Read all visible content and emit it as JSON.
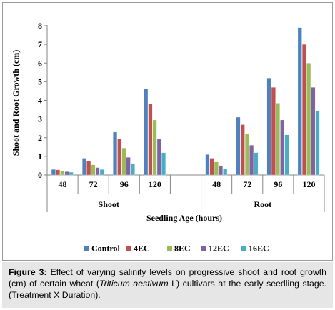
{
  "chart_data": {
    "type": "bar",
    "ylabel": "Shoot and Root Growth (cm)",
    "xlabel": "Seedling Age (hours)",
    "ylim": [
      0,
      8
    ],
    "yticks": [
      0,
      1,
      2,
      3,
      4,
      5,
      6,
      7,
      8
    ],
    "grid": false,
    "legend_position": "bottom",
    "groups": [
      {
        "label": "Shoot",
        "categories": [
          "48",
          "72",
          "96",
          "120"
        ]
      },
      {
        "label": "Root",
        "categories": [
          "48",
          "72",
          "96",
          "120"
        ]
      }
    ],
    "categories": [
      "48",
      "72",
      "96",
      "120",
      "",
      "48",
      "72",
      "96",
      "120"
    ],
    "series": [
      {
        "name": "Control",
        "color": "#4f81bd",
        "values": [
          0.3,
          0.9,
          2.3,
          4.6,
          null,
          1.1,
          3.1,
          5.2,
          7.9
        ]
      },
      {
        "name": "4EC",
        "color": "#c0504d",
        "values": [
          0.28,
          0.75,
          1.95,
          3.8,
          null,
          0.9,
          2.7,
          4.7,
          7.0
        ]
      },
      {
        "name": "8EC",
        "color": "#9bbb59",
        "values": [
          0.22,
          0.55,
          1.45,
          2.95,
          null,
          0.7,
          2.2,
          3.85,
          6.0
        ]
      },
      {
        "name": "12EC",
        "color": "#8064a2",
        "values": [
          0.18,
          0.4,
          0.95,
          1.95,
          null,
          0.5,
          1.6,
          2.95,
          4.7
        ]
      },
      {
        "name": "16EC",
        "color": "#4bacc6",
        "values": [
          0.15,
          0.3,
          0.62,
          1.2,
          null,
          0.35,
          1.2,
          2.15,
          3.45
        ]
      }
    ]
  },
  "caption": {
    "label": "Figure 3:",
    "text_before": " Effect of varying salinity levels on progressive shoot and root growth (cm) of   certain wheat (",
    "italic": "Triticum aestivum",
    "text_after": " L) cultivars at the early seedling stage. (Treatment X Duration)."
  }
}
